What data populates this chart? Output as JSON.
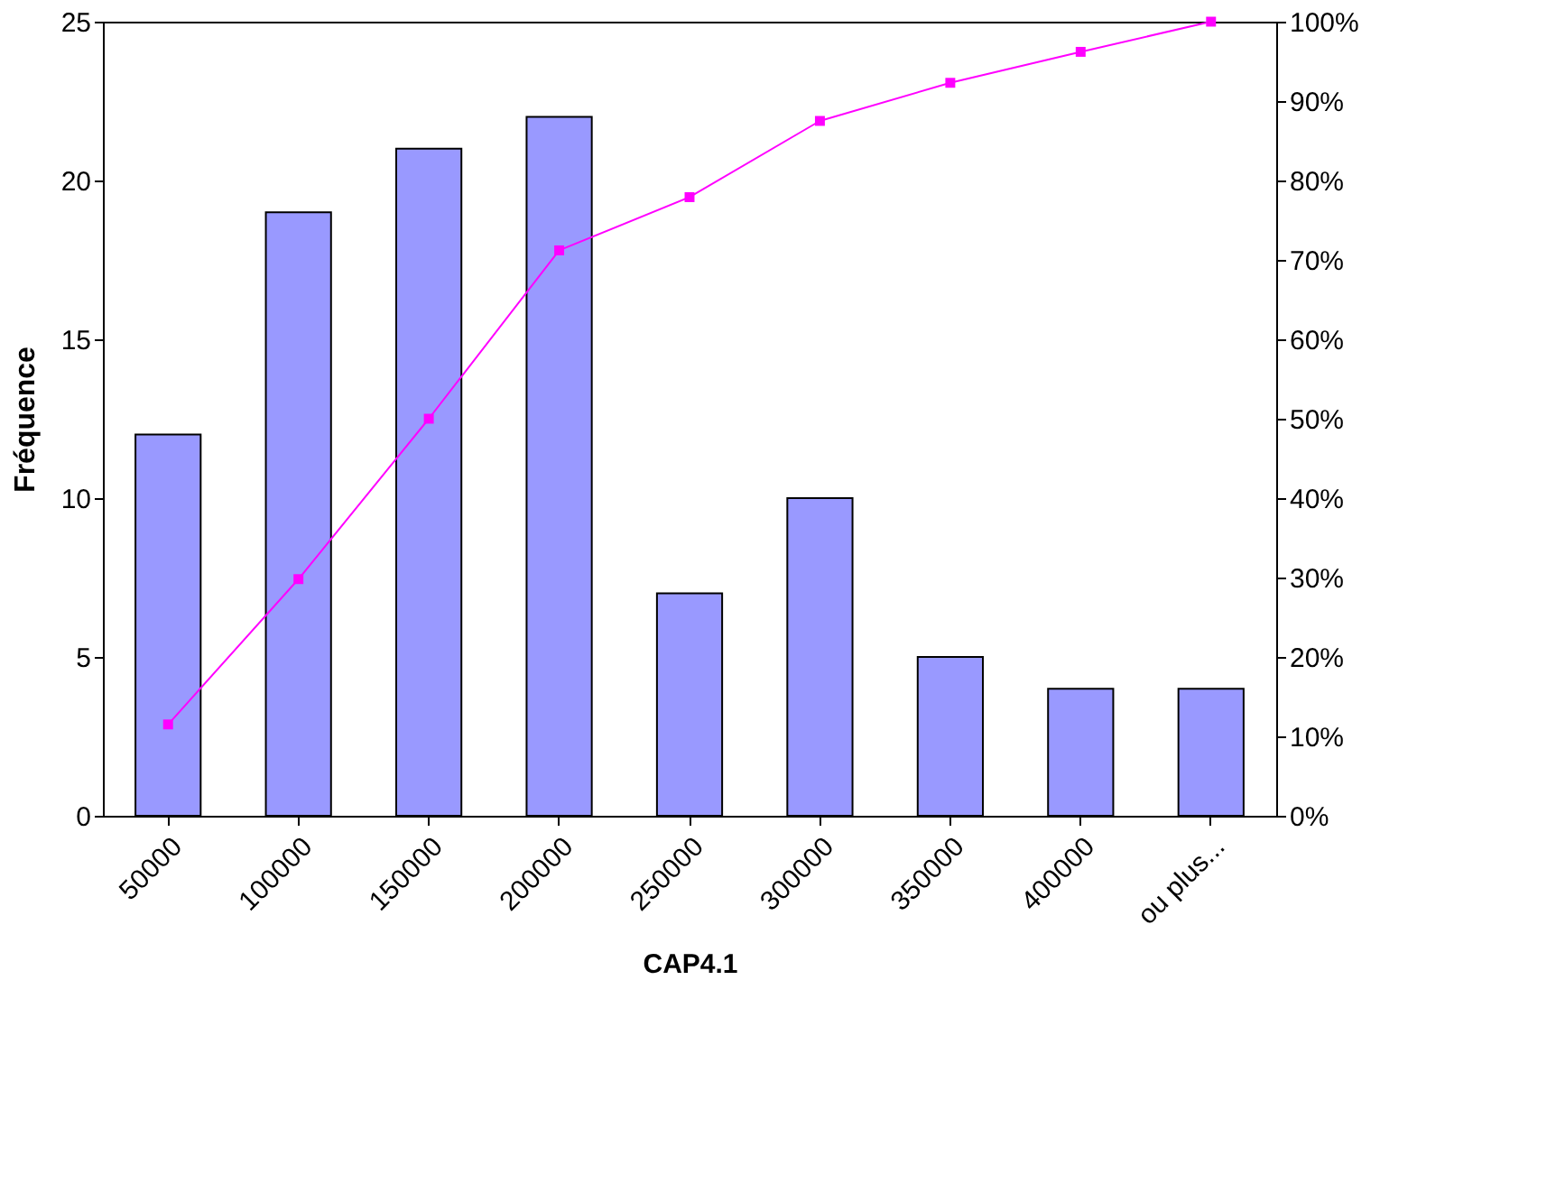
{
  "chart_data": {
    "type": "bar",
    "xlabel": "CAP4.1",
    "ylabel": "Fréquence",
    "categories": [
      "50000",
      "100000",
      "150000",
      "200000",
      "250000",
      "300000",
      "350000",
      "400000",
      "ou plus..."
    ],
    "series": [
      {
        "color": "#9999ff",
        "values": [
          12,
          19,
          21,
          22,
          7,
          10,
          5,
          4,
          4
        ]
      },
      {
        "type": "line",
        "axis": "y2",
        "color": "#ff00ff",
        "marker": "square",
        "values": [
          11.5,
          29.8,
          50,
          71.2,
          77.9,
          87.5,
          92.3,
          96.2,
          100
        ]
      }
    ],
    "ylim": [
      0,
      25
    ],
    "yticks": [
      0,
      5,
      10,
      15,
      20,
      25
    ],
    "y2lim": [
      0,
      100
    ],
    "y2ticks": [
      {
        "value": 0,
        "label": "0%"
      },
      {
        "value": 10,
        "label": "10%"
      },
      {
        "value": 20,
        "label": "20%"
      },
      {
        "value": 30,
        "label": "30%"
      },
      {
        "value": 40,
        "label": "40%"
      },
      {
        "value": 50,
        "label": "50%"
      },
      {
        "value": 60,
        "label": "60%"
      },
      {
        "value": 70,
        "label": "70%"
      },
      {
        "value": 80,
        "label": "80%"
      },
      {
        "value": 90,
        "label": "90%"
      },
      {
        "value": 100,
        "label": "100%"
      }
    ],
    "grid": false
  }
}
